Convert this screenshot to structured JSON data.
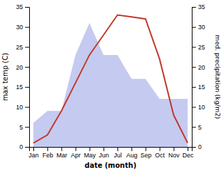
{
  "chart_data": {
    "type": "line",
    "categories": [
      "Jan",
      "Feb",
      "Mar",
      "Apr",
      "May",
      "Jun",
      "Jul",
      "Aug",
      "Sep",
      "Oct",
      "Nov",
      "Dec"
    ],
    "series": [
      {
        "type": "area",
        "color": "#c5caf0",
        "values": [
          6,
          9,
          9,
          23,
          31,
          23,
          23,
          17,
          17,
          12,
          12,
          12
        ]
      },
      {
        "type": "line",
        "color": "#c0392b",
        "axis": "y2",
        "values": [
          1,
          3,
          9,
          16,
          23,
          28,
          33,
          32.5,
          32,
          22,
          8,
          1
        ]
      }
    ],
    "xlabel": "date (month)",
    "ylabel": "max temp (C)",
    "y2label": "med. precipitation (kg/m2)",
    "ylim": [
      0,
      35
    ],
    "yticks": [
      0,
      5,
      10,
      15,
      20,
      25,
      30,
      35
    ],
    "y2lim": [
      0,
      35
    ],
    "y2ticks": [
      0,
      5,
      10,
      15,
      20,
      25,
      30,
      35
    ],
    "grid": false
  }
}
